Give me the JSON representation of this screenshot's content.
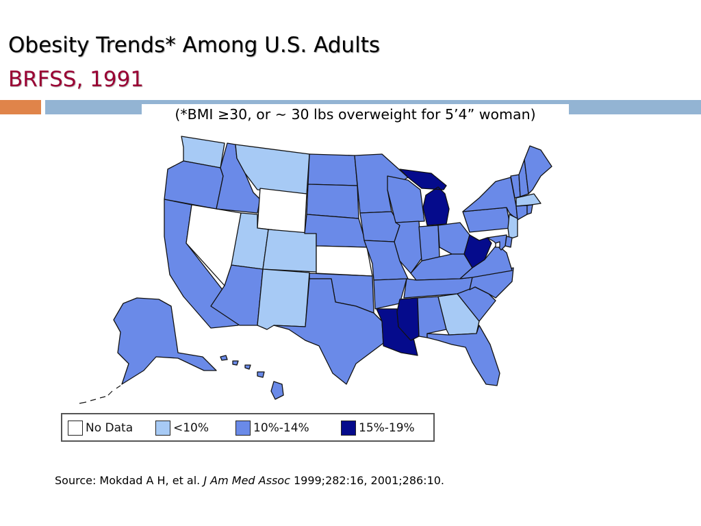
{
  "slide": {
    "title": "Obesity Trends* Among U.S. Adults",
    "subtitle": "BRFSS, 1991",
    "accent_orange": "#E0844A",
    "accent_blue": "#93B4D3"
  },
  "map": {
    "note": "(*BMI ≥30, or ~ 30 lbs overweight for 5’4” woman)",
    "category_colors": {
      "none": "#FFFFFF",
      "lt10": "#A7CAF5",
      "c10_14": "#6A8AE8",
      "c15_19": "#050B8C"
    },
    "legend": [
      {
        "key": "none",
        "label": "No Data"
      },
      {
        "key": "lt10",
        "label": "<10%"
      },
      {
        "key": "c10_14",
        "label": "10%-14%"
      },
      {
        "key": "c15_19",
        "label": "15%-19%"
      }
    ],
    "states": [
      {
        "name": "WA",
        "category": "lt10"
      },
      {
        "name": "OR",
        "category": "c10_14"
      },
      {
        "name": "CA",
        "category": "c10_14"
      },
      {
        "name": "NV",
        "category": "none"
      },
      {
        "name": "ID",
        "category": "c10_14"
      },
      {
        "name": "MT",
        "category": "lt10"
      },
      {
        "name": "WY",
        "category": "none"
      },
      {
        "name": "UT",
        "category": "lt10"
      },
      {
        "name": "AZ",
        "category": "c10_14"
      },
      {
        "name": "CO",
        "category": "lt10"
      },
      {
        "name": "NM",
        "category": "lt10"
      },
      {
        "name": "ND",
        "category": "c10_14"
      },
      {
        "name": "SD",
        "category": "c10_14"
      },
      {
        "name": "NE",
        "category": "c10_14"
      },
      {
        "name": "KS",
        "category": "none"
      },
      {
        "name": "OK",
        "category": "c10_14"
      },
      {
        "name": "TX",
        "category": "c10_14"
      },
      {
        "name": "MN",
        "category": "c10_14"
      },
      {
        "name": "IA",
        "category": "c10_14"
      },
      {
        "name": "MO",
        "category": "c10_14"
      },
      {
        "name": "AR",
        "category": "c10_14"
      },
      {
        "name": "LA",
        "category": "c15_19"
      },
      {
        "name": "WI",
        "category": "c10_14"
      },
      {
        "name": "IL",
        "category": "c10_14"
      },
      {
        "name": "MI",
        "category": "c15_19"
      },
      {
        "name": "IN",
        "category": "c10_14"
      },
      {
        "name": "OH",
        "category": "c10_14"
      },
      {
        "name": "KY",
        "category": "c10_14"
      },
      {
        "name": "TN",
        "category": "c10_14"
      },
      {
        "name": "MS",
        "category": "c15_19"
      },
      {
        "name": "AL",
        "category": "c10_14"
      },
      {
        "name": "GA",
        "category": "lt10"
      },
      {
        "name": "FL",
        "category": "c10_14"
      },
      {
        "name": "SC",
        "category": "c10_14"
      },
      {
        "name": "NC",
        "category": "c10_14"
      },
      {
        "name": "VA",
        "category": "c10_14"
      },
      {
        "name": "WV",
        "category": "c15_19"
      },
      {
        "name": "PA",
        "category": "c10_14"
      },
      {
        "name": "NY",
        "category": "c10_14"
      },
      {
        "name": "VT",
        "category": "c10_14"
      },
      {
        "name": "NH",
        "category": "c10_14"
      },
      {
        "name": "ME",
        "category": "c10_14"
      },
      {
        "name": "MA",
        "category": "lt10"
      },
      {
        "name": "CT",
        "category": "c10_14"
      },
      {
        "name": "RI",
        "category": "c10_14"
      },
      {
        "name": "NJ",
        "category": "lt10"
      },
      {
        "name": "DE",
        "category": "c10_14"
      },
      {
        "name": "MD",
        "category": "c10_14"
      },
      {
        "name": "DC",
        "category": "none"
      },
      {
        "name": "AK",
        "category": "c10_14"
      },
      {
        "name": "HI",
        "category": "c10_14"
      }
    ]
  },
  "source": {
    "prefix": "Source: Mokdad A H, et al. ",
    "journal": "J Am Med Assoc",
    "suffix": " 1999;282:16, 2001;286:10."
  }
}
